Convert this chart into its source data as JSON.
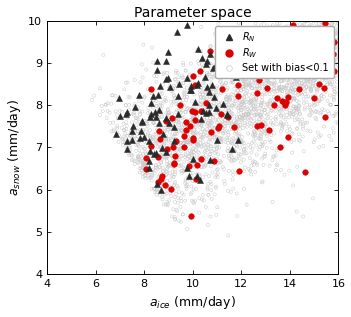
{
  "title": "Parameter space",
  "xlabel": "$a_{ice}$ (mm/day)",
  "ylabel": "$a_{snow}$ (mm/day)",
  "xlim": [
    4,
    16
  ],
  "ylim": [
    4,
    10
  ],
  "xticks": [
    4,
    6,
    8,
    10,
    12,
    14,
    16
  ],
  "yticks": [
    4,
    5,
    6,
    7,
    8,
    9,
    10
  ],
  "legend_RN": "$R_N$",
  "legend_RW": "$R_W$",
  "legend_set": "Set with bias<0.1",
  "bg_color": "#ffffff"
}
